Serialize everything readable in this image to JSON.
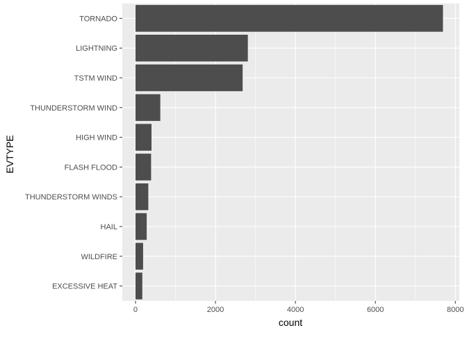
{
  "chart_data": {
    "type": "bar",
    "orientation": "horizontal",
    "title": "",
    "xlabel": "count",
    "ylabel": "EVTYPE",
    "categories": [
      "TORNADO",
      "LIGHTNING",
      "TSTM WIND",
      "THUNDERSTORM WIND",
      "HIGH WIND",
      "FLASH FLOOD",
      "THUNDERSTORM WINDS",
      "HAIL",
      "WILDFIRE",
      "EXCESSIVE HEAT"
    ],
    "values": [
      7690,
      2810,
      2680,
      620,
      400,
      390,
      320,
      280,
      190,
      170
    ],
    "xlim": [
      -330,
      8100
    ],
    "xticks": [
      0,
      2000,
      4000,
      6000,
      8000
    ],
    "grid": true,
    "legend": "none",
    "colors": {
      "bar": "#4d4d4d",
      "panel": "#ebebeb",
      "grid": "#ffffff",
      "tick_text": "#4d4d4d",
      "axis_title": "#000000"
    }
  }
}
